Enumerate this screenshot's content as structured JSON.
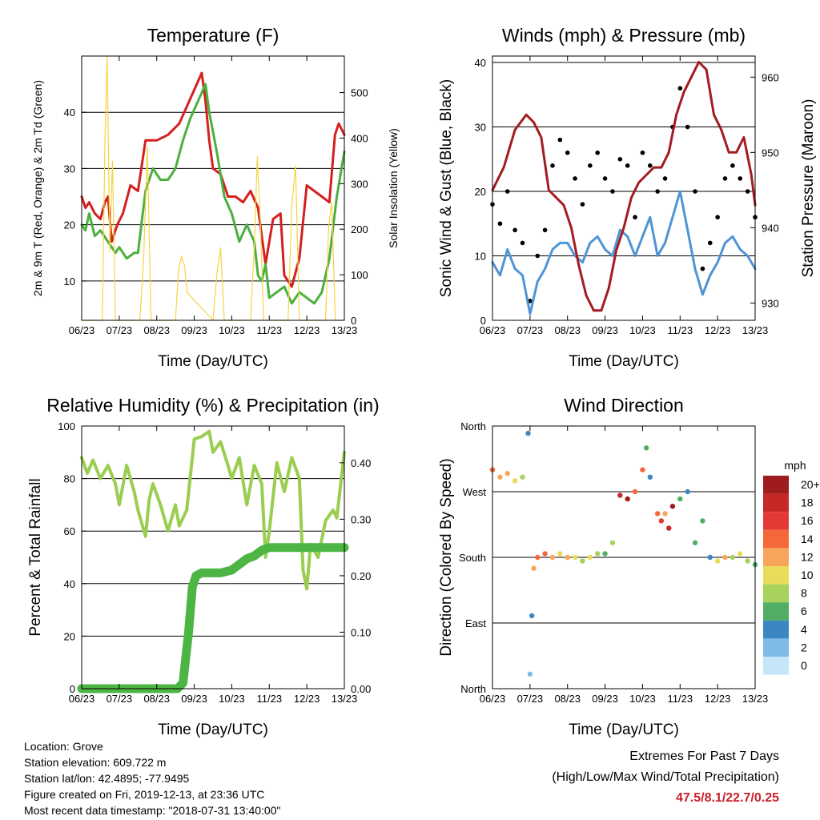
{
  "colors": {
    "temp_2m": "#d42020",
    "temp_9m": "#ee7a22",
    "dewpoint": "#4caf3e",
    "insolation": "#f5d442",
    "gust": "#000000",
    "wind": "#4f94d4",
    "pressure": "#a31c22",
    "rh": "#9acd50",
    "rain": "#4cb544",
    "extremes": "#c8202a"
  },
  "x_axis": {
    "label": "Time (Day/UTC)",
    "ticks": [
      "06/23",
      "07/23",
      "08/23",
      "09/23",
      "10/23",
      "11/23",
      "12/23",
      "13/23"
    ]
  },
  "footer": {
    "location": "Location: Grove",
    "elevation": "Station elevation: 609.722 m",
    "latlon": "Station lat/lon: 42.4895; -77.9495",
    "created": "Figure created on Fri, 2019-12-13, at 23:36 UTC",
    "recent": "Most recent data timestamp: \"2018-07-31 13:40:00\""
  },
  "extremes": {
    "title": "Extremes For Past 7 Days",
    "subtitle": "(High/Low/Max Wind/Total Precipitation)",
    "values": "47.5/8.1/22.7/0.25"
  },
  "chart_data": [
    {
      "id": "temperature",
      "type": "line",
      "title": "Temperature (F)",
      "xlabel": "Time (Day/UTC)",
      "ylabel": "2m & 9m T (Red, Orange) & 2m Td (Green)",
      "y2label": "Solar Insolation (Yellow)",
      "xlim": [
        0,
        7
      ],
      "ylim": [
        3,
        50
      ],
      "y2lim": [
        0,
        580
      ],
      "yticks": [
        10,
        20,
        30,
        40
      ],
      "y2ticks": [
        0,
        100,
        200,
        300,
        400,
        500
      ],
      "grid": true,
      "series": [
        {
          "key": "temp_2m",
          "axis": "left",
          "x": [
            0,
            0.1,
            0.2,
            0.35,
            0.5,
            0.62,
            0.7,
            0.8,
            0.95,
            1.1,
            1.3,
            1.5,
            1.7,
            1.85,
            2.0,
            2.3,
            2.6,
            2.8,
            3.0,
            3.2,
            3.3,
            3.4,
            3.5,
            3.7,
            3.9,
            4.1,
            4.3,
            4.5,
            4.7,
            4.9,
            5.0,
            5.1,
            5.3,
            5.4,
            5.6,
            5.8,
            6.0,
            6.2,
            6.4,
            6.6,
            6.75,
            6.85,
            7.0
          ],
          "y": [
            25,
            23,
            24,
            22,
            21,
            24,
            25,
            17,
            20,
            22,
            27,
            26,
            35,
            35,
            35,
            36,
            38,
            41,
            44,
            47,
            42,
            35,
            30,
            29,
            25,
            25,
            24,
            26,
            23,
            13,
            17,
            21,
            22,
            11,
            9,
            14,
            27,
            26,
            25,
            24,
            36,
            38,
            36
          ]
        },
        {
          "key": "dewpoint",
          "axis": "left",
          "x": [
            0,
            0.1,
            0.2,
            0.35,
            0.5,
            0.7,
            0.9,
            1.0,
            1.2,
            1.4,
            1.5,
            1.7,
            1.9,
            2.1,
            2.3,
            2.5,
            2.7,
            2.9,
            3.1,
            3.3,
            3.4,
            3.6,
            3.8,
            4.0,
            4.2,
            4.4,
            4.6,
            4.7,
            4.8,
            4.9,
            5.0,
            5.2,
            5.4,
            5.6,
            5.8,
            6.0,
            6.2,
            6.4,
            6.6,
            6.8,
            7.0
          ],
          "y": [
            20,
            19,
            22,
            18,
            19,
            17,
            15,
            16,
            14,
            15,
            15,
            26,
            30,
            28,
            28,
            30,
            35,
            39,
            42,
            45,
            40,
            33,
            25,
            22,
            17,
            20,
            17,
            11,
            10,
            13,
            7,
            8,
            9,
            6,
            8,
            7,
            6,
            8,
            14,
            25,
            33
          ]
        },
        {
          "key": "insolation",
          "axis": "right",
          "fill": true,
          "x": [
            0,
            0.55,
            0.62,
            0.68,
            0.75,
            0.82,
            0.9,
            1.55,
            1.65,
            1.75,
            1.85,
            2.5,
            2.58,
            2.66,
            2.74,
            2.82,
            3.5,
            3.6,
            3.7,
            3.8,
            4.5,
            4.6,
            4.68,
            4.76,
            4.85,
            5.5,
            5.6,
            5.7,
            5.8,
            6.5,
            6.58,
            6.66,
            6.76,
            7.0
          ],
          "y": [
            0,
            0,
            400,
            580,
            150,
            350,
            0,
            0,
            130,
            380,
            0,
            0,
            110,
            140,
            120,
            60,
            0,
            100,
            160,
            0,
            0,
            160,
            360,
            220,
            0,
            0,
            250,
            340,
            0,
            0,
            200,
            260,
            0,
            0
          ]
        }
      ]
    },
    {
      "id": "winds",
      "type": "line",
      "title": "Winds (mph) & Pressure (mb)",
      "xlabel": "Time (Day/UTC)",
      "ylabel": "Sonic Wind & Gust (Blue, Black)",
      "y2label": "Station Pressure (Maroon)",
      "xlim": [
        0,
        7
      ],
      "ylim": [
        0,
        41
      ],
      "y2lim": [
        927.7,
        962.8
      ],
      "yticks": [
        0,
        10,
        20,
        30,
        40
      ],
      "y2ticks": [
        930,
        940,
        950,
        960
      ],
      "grid": true,
      "series": [
        {
          "key": "gust",
          "axis": "left",
          "style": "scatter",
          "x": [
            0,
            0.2,
            0.4,
            0.6,
            0.8,
            1.0,
            1.2,
            1.4,
            1.6,
            1.8,
            2.0,
            2.2,
            2.4,
            2.6,
            2.8,
            3.0,
            3.2,
            3.4,
            3.6,
            3.8,
            4.0,
            4.2,
            4.4,
            4.6,
            4.8,
            5.0,
            5.2,
            5.4,
            5.6,
            5.8,
            6.0,
            6.2,
            6.4,
            6.6,
            6.8,
            7.0
          ],
          "y": [
            18,
            15,
            20,
            14,
            12,
            3,
            10,
            14,
            24,
            28,
            26,
            22,
            18,
            24,
            26,
            22,
            20,
            25,
            24,
            16,
            26,
            24,
            20,
            22,
            30,
            36,
            30,
            20,
            8,
            12,
            16,
            22,
            24,
            22,
            20,
            16
          ]
        },
        {
          "key": "wind",
          "axis": "left",
          "x": [
            0,
            0.2,
            0.4,
            0.6,
            0.8,
            1.0,
            1.2,
            1.4,
            1.6,
            1.8,
            2.0,
            2.2,
            2.4,
            2.6,
            2.8,
            3.0,
            3.2,
            3.4,
            3.6,
            3.8,
            4.0,
            4.2,
            4.4,
            4.6,
            4.8,
            5.0,
            5.2,
            5.4,
            5.6,
            5.8,
            6.0,
            6.2,
            6.4,
            6.6,
            6.8,
            7.0
          ],
          "y": [
            9,
            7,
            11,
            8,
            7,
            1,
            6,
            8,
            11,
            12,
            12,
            10,
            9,
            12,
            13,
            11,
            10,
            14,
            13,
            10,
            13,
            16,
            10,
            12,
            16,
            20,
            14,
            8,
            4,
            7,
            9,
            12,
            13,
            11,
            10,
            8
          ]
        },
        {
          "key": "pressure",
          "axis": "right",
          "x": [
            0,
            0.3,
            0.6,
            0.9,
            1.1,
            1.3,
            1.5,
            1.7,
            1.9,
            2.1,
            2.3,
            2.5,
            2.7,
            2.9,
            3.1,
            3.3,
            3.5,
            3.7,
            3.9,
            4.1,
            4.3,
            4.5,
            4.7,
            4.9,
            5.1,
            5.3,
            5.5,
            5.7,
            5.8,
            5.9,
            6.1,
            6.3,
            6.5,
            6.7,
            6.9,
            7.0
          ],
          "y": [
            945,
            948,
            953,
            955,
            954,
            952,
            945,
            944,
            943,
            940,
            935,
            931,
            929,
            929,
            932,
            937,
            940,
            944,
            946,
            947,
            948,
            948,
            950,
            955,
            958,
            960,
            962,
            961,
            958,
            955,
            953,
            950,
            950,
            952,
            947,
            943
          ]
        }
      ]
    },
    {
      "id": "humidity",
      "type": "line",
      "title": "Relative Humidity (%) & Precipitation (in)",
      "xlabel": "Time (Day/UTC)",
      "ylabel": "Percent & Total Rainfall",
      "xlim": [
        0,
        7
      ],
      "ylim": [
        0,
        100
      ],
      "y2lim": [
        0,
        0.465
      ],
      "yticks": [
        0,
        20,
        40,
        60,
        80,
        100
      ],
      "y2ticks": [
        0.0,
        0.1,
        0.2,
        0.3,
        0.4
      ],
      "y2ticklabels": [
        "0.00",
        "0.10",
        "0.20",
        "0.30",
        "0.40"
      ],
      "grid": true,
      "series": [
        {
          "key": "rh",
          "axis": "left",
          "x": [
            0,
            0.15,
            0.3,
            0.5,
            0.7,
            0.9,
            1.0,
            1.2,
            1.4,
            1.5,
            1.7,
            1.8,
            1.9,
            2.1,
            2.3,
            2.5,
            2.6,
            2.8,
            3.0,
            3.2,
            3.4,
            3.5,
            3.7,
            3.9,
            4.0,
            4.2,
            4.4,
            4.6,
            4.8,
            4.9,
            5.0,
            5.2,
            5.4,
            5.6,
            5.8,
            5.9,
            6.0,
            6.1,
            6.3,
            6.5,
            6.7,
            6.8,
            7.0
          ],
          "y": [
            88,
            82,
            87,
            80,
            85,
            78,
            70,
            85,
            75,
            68,
            58,
            72,
            78,
            70,
            60,
            70,
            62,
            68,
            95,
            96,
            98,
            90,
            94,
            85,
            80,
            88,
            70,
            85,
            78,
            50,
            60,
            86,
            75,
            88,
            80,
            45,
            38,
            55,
            50,
            64,
            68,
            65,
            90
          ]
        },
        {
          "key": "rain",
          "axis": "right",
          "x": [
            0,
            2.55,
            2.7,
            2.85,
            2.95,
            3.05,
            3.2,
            3.4,
            3.7,
            4.0,
            4.4,
            4.6,
            4.8,
            5.0,
            5.3,
            6.0,
            7.0
          ],
          "y": [
            0,
            0,
            0.01,
            0.1,
            0.18,
            0.2,
            0.205,
            0.205,
            0.205,
            0.21,
            0.23,
            0.235,
            0.245,
            0.25,
            0.25,
            0.25,
            0.25
          ]
        }
      ]
    },
    {
      "id": "direction",
      "type": "scatter",
      "title": "Wind Direction",
      "xlabel": "Time (Day/UTC)",
      "ylabel": "Direction (Colored By Speed)",
      "xlim": [
        0,
        7
      ],
      "ylim": [
        0,
        360
      ],
      "yticks": [
        0,
        90,
        180,
        270,
        360
      ],
      "yticklabels": [
        "North",
        "East",
        "South",
        "West",
        "North"
      ],
      "grid": true,
      "legend": {
        "title": "mph",
        "labels": [
          "20+",
          "18",
          "16",
          "14",
          "12",
          "10",
          "8",
          "6",
          "4",
          "2",
          "0"
        ],
        "colors": [
          "#9e1b1e",
          "#c62828",
          "#e53935",
          "#f4683a",
          "#f7a55b",
          "#e8dc5a",
          "#a8d25c",
          "#52ad65",
          "#3a87c2",
          "#7fbbe6",
          "#c4e6f8"
        ]
      },
      "series": [
        {
          "key": "direction",
          "x": [
            0,
            0.2,
            0.4,
            0.6,
            0.8,
            0.95,
            1.0,
            1.05,
            1.1,
            1.2,
            1.4,
            1.6,
            1.8,
            2.0,
            2.2,
            2.4,
            2.6,
            2.8,
            3.0,
            3.2,
            3.4,
            3.6,
            3.8,
            4.0,
            4.1,
            4.2,
            4.4,
            4.5,
            4.6,
            4.7,
            4.8,
            5.0,
            5.2,
            5.4,
            5.6,
            5.8,
            6.0,
            6.2,
            6.4,
            6.6,
            6.8,
            7.0
          ],
          "y": [
            300,
            290,
            295,
            285,
            290,
            350,
            20,
            100,
            165,
            180,
            185,
            180,
            185,
            180,
            180,
            175,
            180,
            185,
            185,
            200,
            265,
            260,
            270,
            300,
            330,
            290,
            240,
            230,
            240,
            220,
            250,
            260,
            270,
            200,
            230,
            180,
            175,
            180,
            180,
            185,
            175,
            170
          ],
          "speed": [
            14,
            12,
            12,
            10,
            8,
            4,
            2,
            4,
            12,
            14,
            14,
            12,
            10,
            12,
            10,
            8,
            10,
            8,
            6,
            8,
            18,
            20,
            14,
            14,
            6,
            4,
            14,
            16,
            12,
            18,
            20,
            6,
            4,
            6,
            6,
            4,
            10,
            12,
            8,
            10,
            8,
            6
          ]
        }
      ]
    }
  ]
}
